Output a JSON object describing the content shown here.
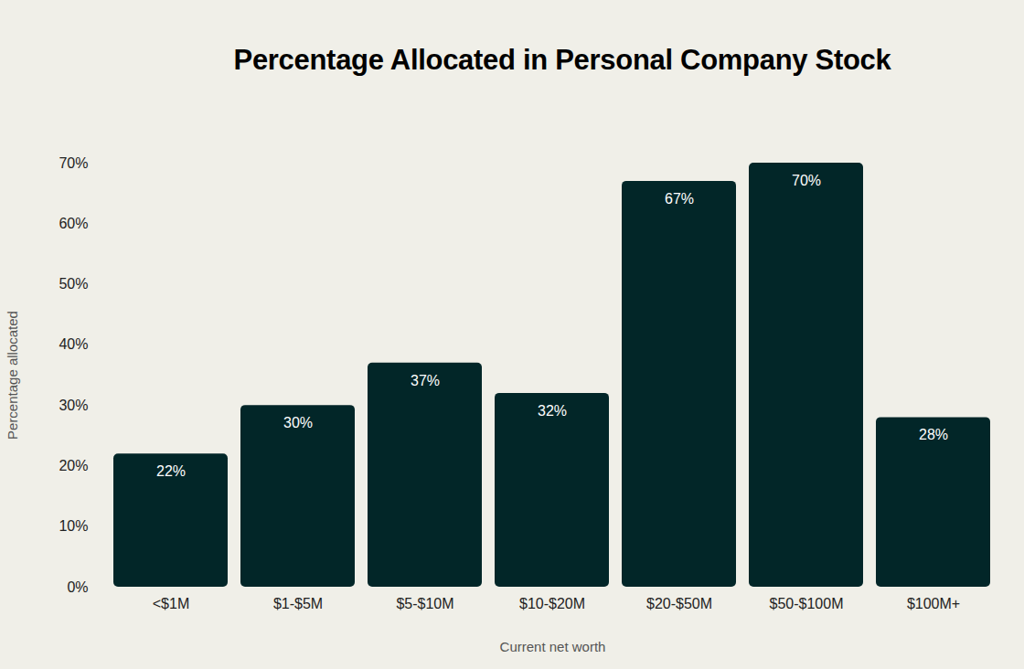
{
  "chart_data": {
    "type": "bar",
    "title": "Percentage Allocated in Personal Company Stock",
    "xlabel": "Current net worth",
    "ylabel": "Percentage allocated",
    "categories": [
      "<$1M",
      "$1-$5M",
      "$5-$10M",
      "$10-$20M",
      "$20-$50M",
      "$50-$100M",
      "$100M+"
    ],
    "values": [
      22,
      30,
      37,
      32,
      67,
      70,
      28
    ],
    "value_labels": [
      "22%",
      "30%",
      "37%",
      "32%",
      "67%",
      "70%",
      "28%"
    ],
    "data_labels": true,
    "color": "#022628",
    "ylim": [
      0,
      70
    ],
    "yticks": [
      {
        "value": 0,
        "label": "0%"
      },
      {
        "value": 10,
        "label": "10%"
      },
      {
        "value": 20,
        "label": "20%"
      },
      {
        "value": 30,
        "label": "30%"
      },
      {
        "value": 40,
        "label": "40%"
      },
      {
        "value": 50,
        "label": "50%"
      },
      {
        "value": 60,
        "label": "60%"
      },
      {
        "value": 70,
        "label": "70%"
      }
    ],
    "grid": false
  }
}
